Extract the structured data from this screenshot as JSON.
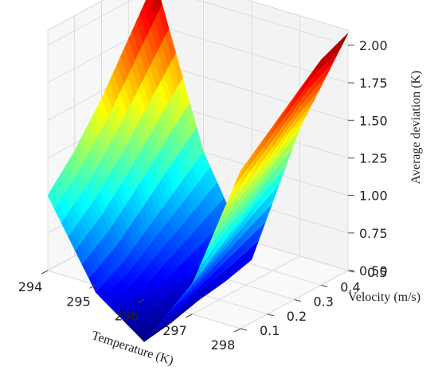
{
  "chart_data": {
    "type": "surface3d",
    "title": "",
    "xlabel": "Temperature (K)",
    "ylabel": "Velocity (m/s)",
    "zlabel": "Average deviation (K)",
    "xlim": [
      294,
      298
    ],
    "ylim": [
      0.1,
      0.5
    ],
    "zlim": [
      0.5,
      2.1
    ],
    "x_ticks": [
      "294",
      "295",
      "296",
      "297",
      "298"
    ],
    "y_ticks": [
      "0.1",
      "0.2",
      "0.3",
      "0.4",
      "0.5"
    ],
    "z_ticks": [
      "0.50",
      "0.75",
      "1.00",
      "1.25",
      "1.50",
      "1.75",
      "2.00"
    ],
    "colormap": "jet",
    "grid": true,
    "x": [
      294,
      295,
      296,
      297,
      298
    ],
    "y": [
      0.1,
      0.2,
      0.3,
      0.4,
      0.5
    ],
    "z": [
      [
        1.0,
        0.45,
        0.22,
        0.7,
        1.55
      ],
      [
        1.2,
        0.55,
        0.25,
        0.85,
        1.7
      ],
      [
        1.45,
        0.7,
        0.3,
        1.0,
        1.85
      ],
      [
        1.75,
        0.85,
        0.33,
        1.2,
        2.0
      ],
      [
        2.05,
        1.0,
        0.38,
        1.35,
        2.08
      ]
    ]
  }
}
